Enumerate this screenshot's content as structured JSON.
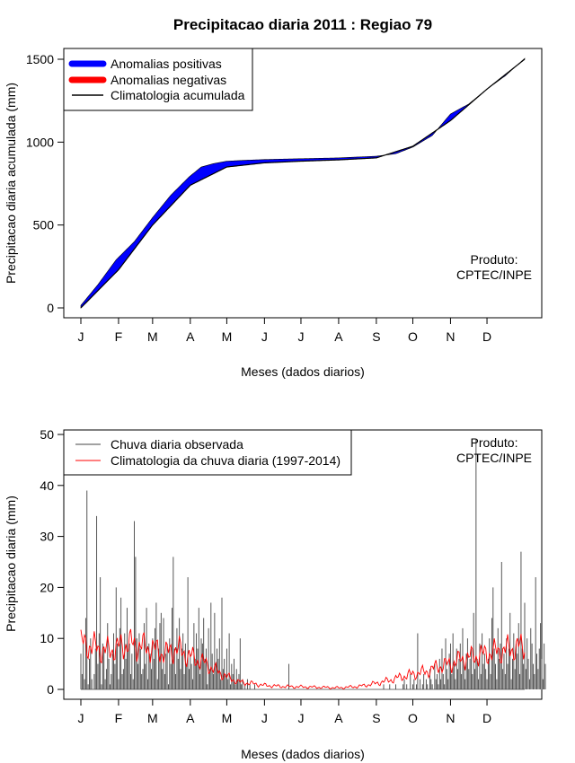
{
  "title": "Precipitacao diaria 2011 : Regiao 79",
  "chart_data": [
    {
      "type": "area",
      "ylabel": "Precipitacao diaria acumulada (mm)",
      "xlabel": "Meses (dados diarios)",
      "ylim": [
        0,
        1500
      ],
      "yticks": [
        "0",
        "500",
        "1000",
        "1500"
      ],
      "xticks": [
        "J",
        "F",
        "M",
        "A",
        "M",
        "J",
        "J",
        "A",
        "S",
        "O",
        "N",
        "D"
      ],
      "legend": [
        {
          "label": "Anomalias positivas",
          "color": "#0000ff"
        },
        {
          "label": "Anomalias negativas",
          "color": "#ff0000"
        },
        {
          "label": "Climatologia acumulada",
          "color": "#000000"
        }
      ],
      "annotation": [
        "Produto:",
        "CPTEC/INPE"
      ],
      "climatology_cumulative": {
        "day": [
          1,
          32,
          60,
          91,
          121,
          152,
          182,
          213,
          244,
          274,
          305,
          335,
          366
        ],
        "value": [
          0,
          230,
          500,
          740,
          850,
          875,
          885,
          893,
          905,
          975,
          1130,
          1320,
          1500
        ]
      },
      "observed_cumulative": {
        "day": [
          1,
          15,
          30,
          45,
          60,
          75,
          90,
          100,
          110,
          121,
          135,
          152,
          182,
          213,
          244,
          260,
          274,
          290,
          305,
          320,
          335,
          350,
          366
        ],
        "value": [
          15,
          140,
          290,
          400,
          545,
          680,
          790,
          850,
          870,
          885,
          890,
          895,
          900,
          905,
          915,
          930,
          970,
          1040,
          1170,
          1230,
          1320,
          1400,
          1505
        ]
      }
    },
    {
      "type": "bar",
      "ylabel": "Precipitacao diaria (mm)",
      "xlabel": "Meses (dados diarios)",
      "ylim": [
        0,
        50
      ],
      "yticks": [
        "0",
        "10",
        "20",
        "30",
        "40",
        "50"
      ],
      "xticks": [
        "J",
        "F",
        "M",
        "A",
        "M",
        "J",
        "J",
        "A",
        "S",
        "O",
        "N",
        "D"
      ],
      "legend": [
        {
          "label": "Chuva diaria observada",
          "color": "#444444"
        },
        {
          "label": "Climatologia da chuva diaria (1997-2014)",
          "color": "#ff0000"
        }
      ],
      "annotation": [
        "Produto:",
        "CPTEC/INPE"
      ],
      "daily_observed_mm": [
        7,
        3,
        9,
        2,
        14,
        39,
        1,
        6,
        10,
        2,
        0,
        3,
        8,
        34,
        5,
        11,
        22,
        1,
        9,
        8,
        2,
        4,
        13,
        6,
        1,
        3,
        7,
        11,
        5,
        20,
        9,
        2,
        12,
        18,
        3,
        4,
        11,
        6,
        16,
        8,
        9,
        3,
        7,
        2,
        33,
        26,
        10,
        5,
        11,
        8,
        3,
        4,
        13,
        5,
        16,
        2,
        9,
        7,
        4,
        10,
        6,
        12,
        17,
        2,
        8,
        13,
        15,
        4,
        14,
        3,
        7,
        9,
        1,
        10,
        5,
        16,
        26,
        8,
        3,
        12,
        6,
        14,
        4,
        8,
        11,
        3,
        9,
        5,
        22,
        4,
        7,
        5,
        2,
        13,
        6,
        11,
        8,
        16,
        3,
        10,
        9,
        14,
        6,
        8,
        1,
        12,
        4,
        17,
        7,
        3,
        15,
        5,
        8,
        6,
        10,
        2,
        18,
        4,
        6,
        3,
        8,
        2,
        11,
        1,
        5,
        3,
        6,
        1,
        4,
        2,
        3,
        10,
        1,
        2,
        0,
        1,
        0,
        2,
        0,
        1,
        0,
        0,
        0,
        1,
        0,
        0,
        0,
        0,
        0,
        0,
        0,
        0,
        0,
        0,
        0,
        0,
        0,
        0,
        0,
        0,
        0,
        0,
        0,
        0,
        0,
        0,
        0,
        0,
        0,
        0,
        0,
        5,
        0,
        0,
        0,
        0,
        0,
        0,
        0,
        0,
        0,
        0,
        0,
        0,
        0,
        0,
        0,
        0,
        0,
        0,
        0,
        0,
        0,
        0,
        0,
        0,
        0,
        0,
        0,
        0,
        0,
        0,
        0,
        0,
        0,
        0,
        0,
        0,
        0,
        0,
        0,
        0,
        0,
        0,
        0,
        0,
        0,
        0,
        0,
        0,
        0,
        0,
        0,
        0,
        0,
        0,
        0,
        0,
        0,
        0,
        0,
        0,
        0,
        0,
        0,
        0,
        0,
        0,
        0,
        0,
        0,
        0,
        0,
        0,
        0,
        0,
        0,
        0,
        0,
        1,
        0,
        0,
        0,
        0,
        1,
        0,
        0,
        0,
        0,
        1,
        0,
        0,
        0,
        0,
        0,
        1,
        2,
        0,
        1,
        0,
        0,
        3,
        0,
        1,
        2,
        0,
        1,
        11,
        0,
        2,
        0,
        1,
        3,
        0,
        2,
        1,
        0,
        4,
        2,
        1,
        0,
        5,
        2,
        3,
        1,
        6,
        2,
        8,
        3,
        1,
        10,
        4,
        2,
        7,
        9,
        3,
        11,
        5,
        2,
        8,
        4,
        6,
        9,
        3,
        12,
        5,
        2,
        7,
        10,
        4,
        6,
        8,
        3,
        15,
        4,
        49,
        6,
        2,
        9,
        3,
        11,
        5,
        7,
        4,
        2,
        6,
        10,
        3,
        14,
        20,
        8,
        5,
        2,
        12,
        6,
        9,
        25,
        4,
        7,
        3,
        10,
        5,
        8,
        15,
        2,
        6,
        11,
        4,
        9,
        7,
        13,
        3,
        27,
        8,
        5,
        17,
        4,
        10,
        6,
        2,
        12,
        9,
        5,
        3,
        22,
        7,
        4,
        8,
        13,
        6,
        2,
        9,
        5
      ],
      "daily_climatology_mm": {
        "day": [
          1,
          10,
          20,
          30,
          40,
          50,
          60,
          70,
          80,
          90,
          100,
          110,
          121,
          130,
          140,
          152,
          165,
          182,
          200,
          213,
          230,
          244,
          255,
          265,
          274,
          285,
          295,
          305,
          315,
          325,
          335,
          345,
          355,
          366
        ],
        "value": [
          9.0,
          8.5,
          7.5,
          8.0,
          9.0,
          8.5,
          8.0,
          7.0,
          8.0,
          6.5,
          5.5,
          4.0,
          2.5,
          1.5,
          1.2,
          0.8,
          0.6,
          0.5,
          0.4,
          0.3,
          0.6,
          1.2,
          1.8,
          2.5,
          3.0,
          3.5,
          4.5,
          5.0,
          6.0,
          6.5,
          7.0,
          7.5,
          8.0,
          8.5
        ]
      }
    }
  ]
}
